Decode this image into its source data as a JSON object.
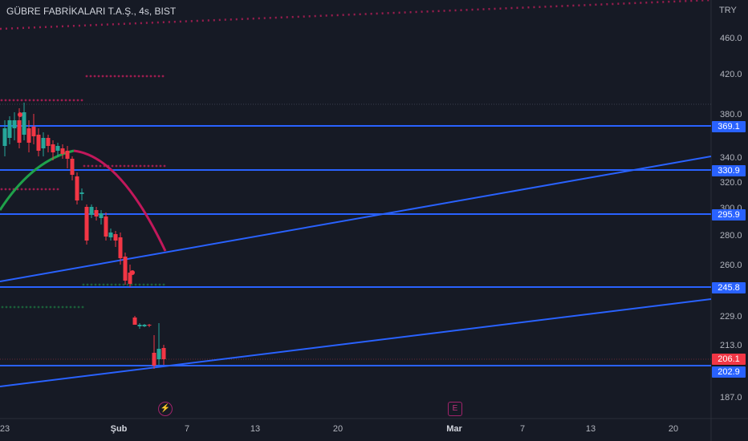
{
  "header": {
    "title": "GÜBRE FABRİKALARI T.A.Ş., 4s, BIST",
    "currency": "TRY"
  },
  "price_axis": {
    "ticks": [
      "460.0",
      "420.0",
      "380.0",
      "340.0",
      "320.0",
      "300.0",
      "280.0",
      "260.0",
      "229.0",
      "213.0",
      "187.0"
    ],
    "labels": [
      {
        "text": "369.1",
        "color": "#2962ff"
      },
      {
        "text": "330.9",
        "color": "#2962ff"
      },
      {
        "text": "295.9",
        "color": "#2962ff"
      },
      {
        "text": "245.8",
        "color": "#2962ff"
      },
      {
        "text": "206.1",
        "color": "#f23645"
      },
      {
        "text": "202.9",
        "color": "#2962ff"
      }
    ]
  },
  "time_axis": {
    "ticks": [
      {
        "text": "23",
        "bold": false
      },
      {
        "text": "Şub",
        "bold": true
      },
      {
        "text": "7",
        "bold": false
      },
      {
        "text": "13",
        "bold": false
      },
      {
        "text": "20",
        "bold": false
      },
      {
        "text": "Mar",
        "bold": true
      },
      {
        "text": "7",
        "bold": false
      },
      {
        "text": "13",
        "bold": false
      },
      {
        "text": "20",
        "bold": false
      }
    ]
  },
  "events": [
    {
      "icon": "lightning-icon",
      "glyph": "⚡"
    },
    {
      "icon": "earnings-icon",
      "glyph": "E"
    }
  ],
  "colors": {
    "background": "#161a25",
    "up": "#26a69a",
    "down": "#f23645",
    "hline": "#2962ff",
    "trend": "#2962ff",
    "arc_up": "#1fa14a",
    "arc_down": "#c2185b",
    "dots_red": "#9c1d4f",
    "dots_green": "#1b5e3a"
  }
}
